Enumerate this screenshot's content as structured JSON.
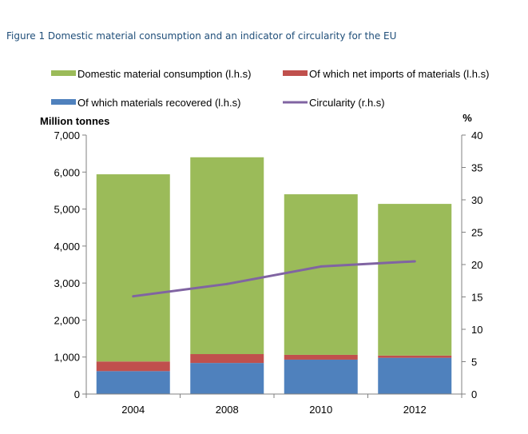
{
  "figure_title": "Figure 1 Domestic material consumption and an indicator of circularity for the EU",
  "chart_data": {
    "type": "bar",
    "stacked": true,
    "categories": [
      "2004",
      "2008",
      "2010",
      "2012"
    ],
    "series": [
      {
        "name": "Of which materials recovered (l.h.s)",
        "axis": "left",
        "color": "#4f81bd",
        "values": [
          620,
          840,
          930,
          980
        ]
      },
      {
        "name": "Of which net imports of materials (l.h.s)",
        "axis": "left",
        "color": "#c0504d",
        "values": [
          260,
          240,
          130,
          60
        ]
      },
      {
        "name": "Domestic material consumption (l.h.s)",
        "axis": "left",
        "color": "#9bbb59",
        "values": [
          5060,
          5320,
          4340,
          4100
        ]
      },
      {
        "name": "Circularity (r.h.s)",
        "axis": "right",
        "type": "line",
        "color": "#8064a2",
        "values": [
          15.1,
          17.0,
          19.7,
          20.5
        ]
      }
    ],
    "left_axis": {
      "label": "Million tonnes",
      "range": [
        0,
        7000
      ],
      "ticks": [
        "0",
        "1,000",
        "2,000",
        "3,000",
        "4,000",
        "5,000",
        "6,000",
        "7,000"
      ]
    },
    "right_axis": {
      "label": "%",
      "range": [
        0,
        40
      ],
      "ticks": [
        "0",
        "5",
        "10",
        "15",
        "20",
        "25",
        "30",
        "35",
        "40"
      ]
    },
    "legend_position": "top",
    "grid": false
  }
}
